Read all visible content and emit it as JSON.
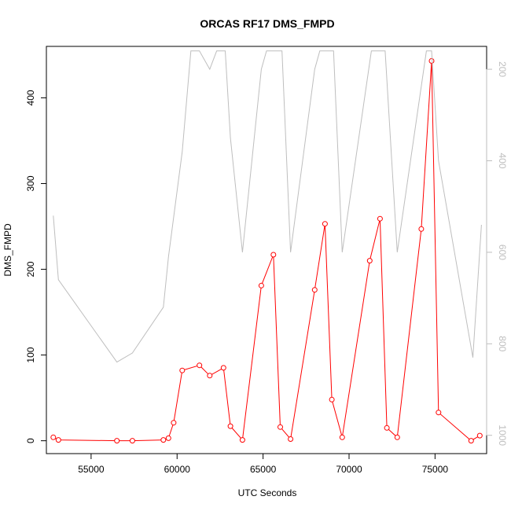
{
  "chart_data": {
    "type": "line",
    "title": "ORCAS RF17 DMS_FMPD",
    "xlabel": "UTC Seconds",
    "ylabel": "DMS_FMPD",
    "xlim": [
      52400,
      78000
    ],
    "ylim": [
      -15,
      460
    ],
    "x_ticks": [
      55000,
      60000,
      65000,
      70000,
      75000
    ],
    "y_ticks": [
      0,
      100,
      200,
      300,
      400
    ],
    "y2_ticks": [
      200,
      400,
      600,
      800,
      1000
    ],
    "y2_reversed": true,
    "y2lim": [
      1040,
      150
    ],
    "series": [
      {
        "color": "#ff0000",
        "axis": "left",
        "markers": "open-circle",
        "x": [
          52800,
          53100,
          56500,
          57400,
          59200,
          59500,
          59800,
          60300,
          61300,
          61900,
          62700,
          63100,
          63800,
          64900,
          65600,
          66000,
          66600,
          68000,
          68600,
          69000,
          69600,
          71200,
          71800,
          72200,
          72800,
          74200,
          74800,
          75200,
          77100,
          77600
        ],
        "y": [
          4,
          1,
          0,
          0,
          1,
          3,
          21,
          82,
          88,
          76,
          85,
          17,
          1,
          181,
          217,
          16,
          2,
          176,
          253,
          48,
          4,
          210,
          259,
          15,
          4,
          247,
          443,
          33,
          0,
          6
        ]
      },
      {
        "color": "#bebebe",
        "axis": "right",
        "markers": "none",
        "x": [
          52800,
          53100,
          56500,
          57400,
          59200,
          59500,
          60300,
          60800,
          61300,
          61900,
          62300,
          62800,
          63100,
          63800,
          64900,
          65200,
          65600,
          66100,
          66600,
          68000,
          68300,
          68600,
          69100,
          69600,
          71300,
          71600,
          72100,
          72800,
          74500,
          74800,
          75200,
          77200,
          77700
        ],
        "y": [
          520,
          660,
          840,
          820,
          720,
          610,
          380,
          160,
          160,
          200,
          160,
          160,
          350,
          600,
          200,
          160,
          160,
          160,
          600,
          200,
          160,
          160,
          160,
          600,
          160,
          160,
          160,
          600,
          160,
          160,
          400,
          830,
          540
        ]
      }
    ]
  }
}
